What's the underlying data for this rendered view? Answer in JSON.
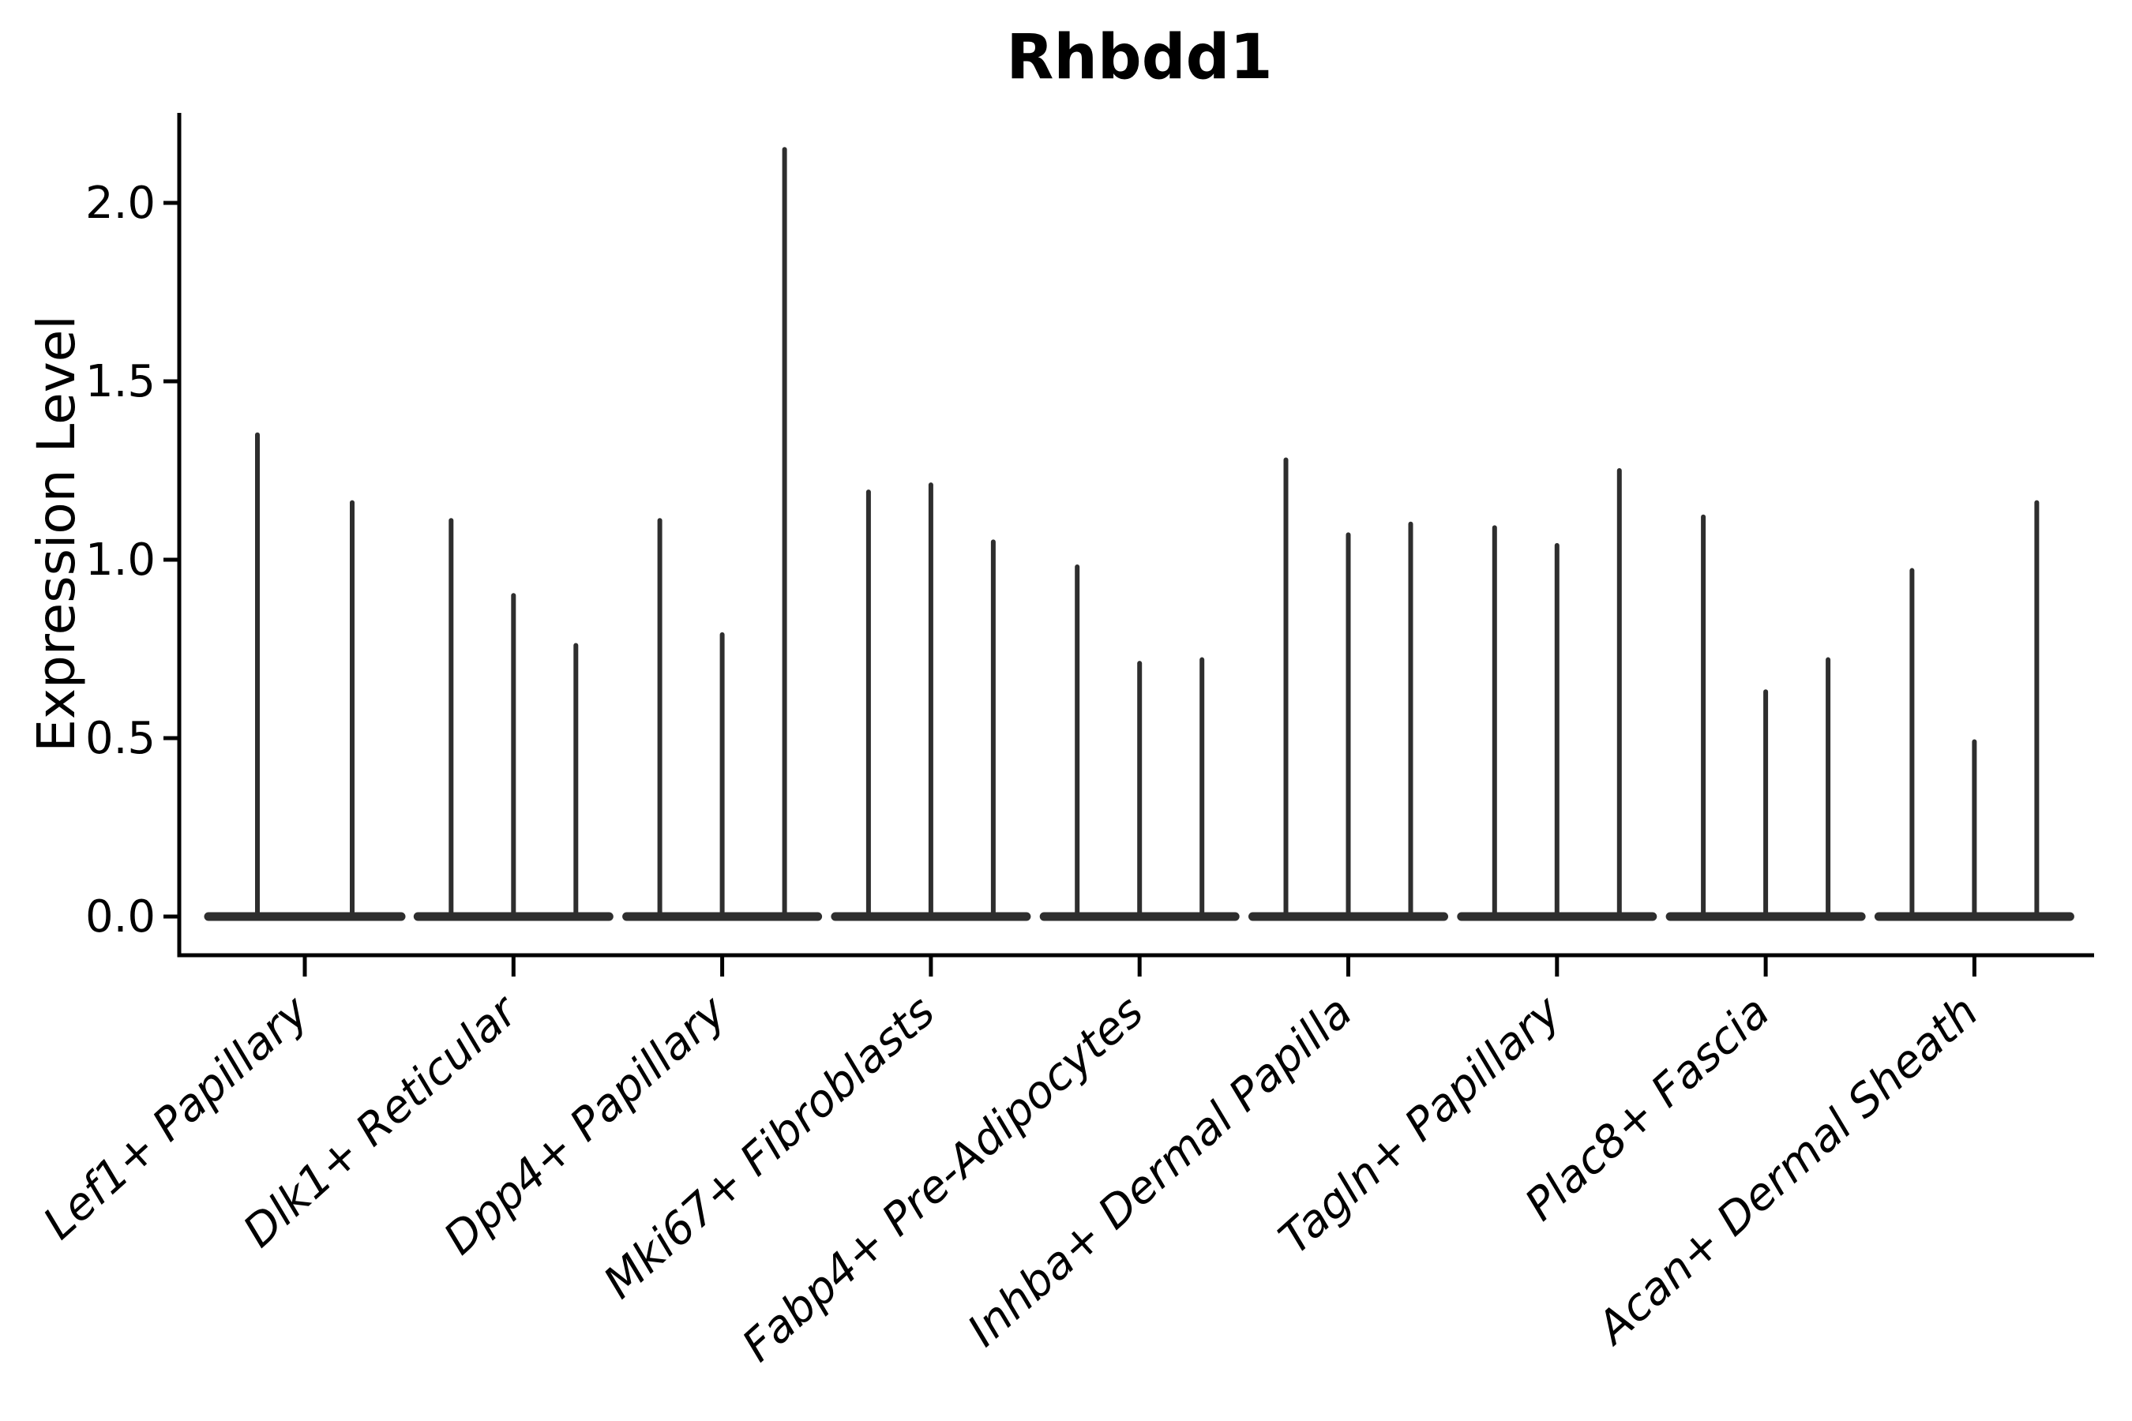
{
  "title": "Rhbdd1",
  "y_axis_label": "Expression Level",
  "colors": {
    "violin": "#2e2e2e",
    "axis": "#000000",
    "text": "#000000",
    "background": "#ffffff"
  },
  "chart_data": {
    "type": "violin",
    "title": "Rhbdd1",
    "xlabel": "",
    "ylabel": "Expression Level",
    "ylim": [
      -0.11,
      2.25
    ],
    "yticks": [
      0.0,
      0.5,
      1.0,
      1.5,
      2.0
    ],
    "ytick_labels": [
      "0.0",
      "0.5",
      "1.0",
      "1.5",
      "2.0"
    ],
    "grid": false,
    "legend_position": "none",
    "categories": [
      "Lef1+ Papillary",
      "Dlk1+ Reticular",
      "Dpp4+ Papillary",
      "Mki67+ Fibroblasts",
      "Fabp4+ Pre-Adipocytes",
      "Inhba+ Dermal Papilla",
      "Tagln+ Papillary",
      "Plac8+ Fascia",
      "Acan+ Dermal Sheath"
    ],
    "groups": [
      {
        "label": "Lef1+ Papillary",
        "violin_peak_values": [
          1.35,
          1.16
        ]
      },
      {
        "label": "Dlk1+ Reticular",
        "violin_peak_values": [
          1.11,
          0.9,
          0.76
        ]
      },
      {
        "label": "Dpp4+ Papillary",
        "violin_peak_values": [
          1.11,
          0.79,
          2.15
        ]
      },
      {
        "label": "Mki67+ Fibroblasts",
        "violin_peak_values": [
          1.19,
          1.21,
          1.05
        ]
      },
      {
        "label": "Fabp4+ Pre-Adipocytes",
        "violin_peak_values": [
          0.98,
          0.71,
          0.72
        ]
      },
      {
        "label": "Inhba+ Dermal Papilla",
        "violin_peak_values": [
          1.28,
          1.07,
          1.1
        ]
      },
      {
        "label": "Tagln+ Papillary",
        "violin_peak_values": [
          1.09,
          1.04,
          1.25
        ]
      },
      {
        "label": "Plac8+ Fascia",
        "violin_peak_values": [
          1.12,
          0.63,
          0.72
        ]
      },
      {
        "label": "Acan+ Dermal Sheath",
        "violin_peak_values": [
          0.97,
          0.49,
          1.16
        ]
      }
    ]
  }
}
